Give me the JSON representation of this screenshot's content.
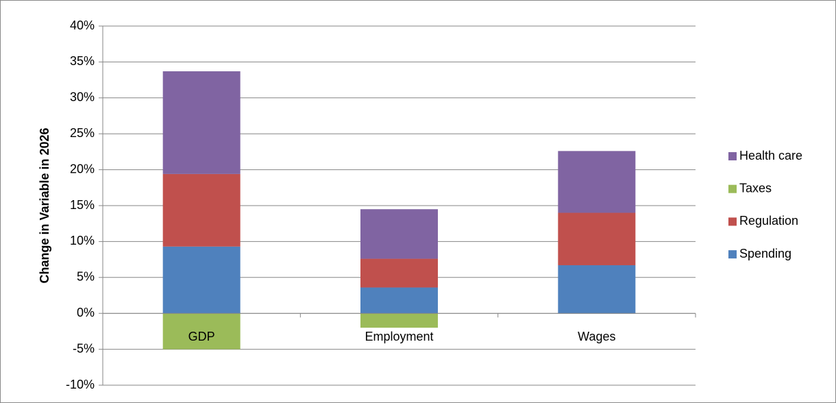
{
  "chart_data": {
    "type": "stacked_bar",
    "y_label": "Change in Variable in 2026",
    "categories": [
      "GDP",
      "Employment",
      "Wages"
    ],
    "series": [
      {
        "name": "Spending",
        "color": "#4f81bd",
        "values": [
          9.3,
          3.6,
          6.7
        ]
      },
      {
        "name": "Regulation",
        "color": "#c0504d",
        "values": [
          10.1,
          4.0,
          7.3
        ]
      },
      {
        "name": "Taxes",
        "color": "#9bbb59",
        "values": [
          -5.0,
          -2.0,
          0
        ]
      },
      {
        "name": "Health care",
        "color": "#8064a2",
        "values": [
          14.3,
          6.9,
          8.6
        ]
      }
    ],
    "ylim": [
      -10,
      40
    ],
    "yticks": [
      {
        "value": -10,
        "label": "-10%"
      },
      {
        "value": -5,
        "label": "-5%"
      },
      {
        "value": 0,
        "label": "0%"
      },
      {
        "value": 5,
        "label": "5%"
      },
      {
        "value": 10,
        "label": "10%"
      },
      {
        "value": 15,
        "label": "15%"
      },
      {
        "value": 20,
        "label": "20%"
      },
      {
        "value": 25,
        "label": "25%"
      },
      {
        "value": 30,
        "label": "30%"
      },
      {
        "value": 35,
        "label": "35%"
      },
      {
        "value": 40,
        "label": "40%"
      }
    ],
    "grid": true,
    "legend": "right"
  }
}
